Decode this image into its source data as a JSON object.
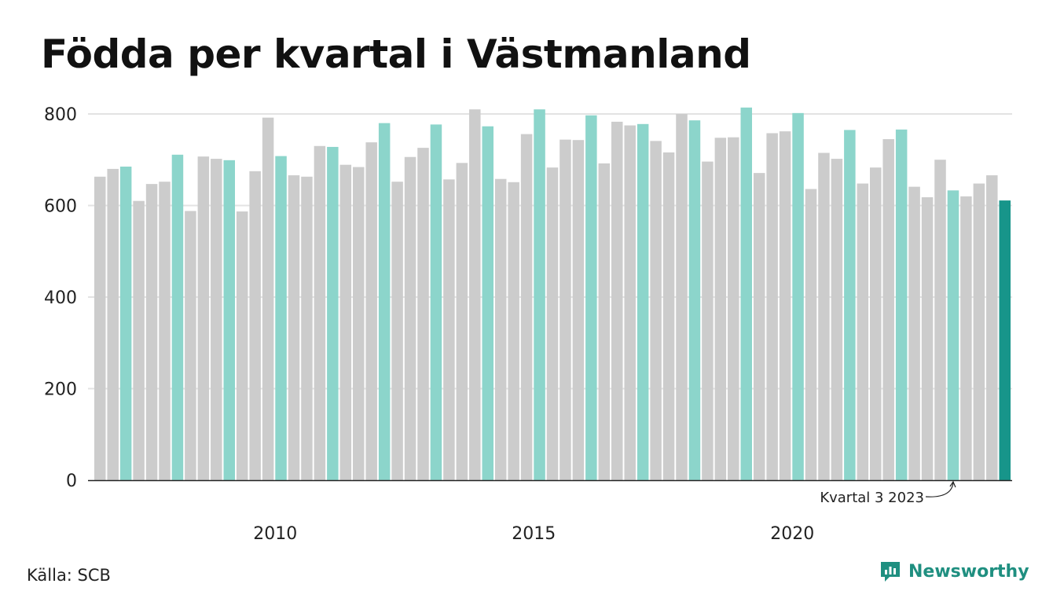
{
  "title": "Födda per kvartal i Västmanland",
  "source": "Källa: SCB",
  "brand": "Newsworthy",
  "colors": {
    "default_bar": "#cccccc",
    "same_quarter_bar": "#8cd5cb",
    "latest_bar": "#17958a",
    "axis": "#222222",
    "grid": "#e3e3e3",
    "brand": "#1f8f80"
  },
  "chart_data": {
    "type": "bar",
    "title": "Födda per kvartal i Västmanland",
    "ylim": [
      0,
      820
    ],
    "yticks": [
      0,
      200,
      400,
      600,
      800
    ],
    "grid": true,
    "xticks": [
      "2010",
      "2015",
      "2020"
    ],
    "annotation": "Kvartal 3 2023",
    "categories": [
      "2007 K1",
      "2007 K2",
      "2007 K3",
      "2007 K4",
      "2008 K1",
      "2008 K2",
      "2008 K3",
      "2008 K4",
      "2009 K1",
      "2009 K2",
      "2009 K3",
      "2009 K4",
      "2010 K1",
      "2010 K2",
      "2010 K3",
      "2010 K4",
      "2011 K1",
      "2011 K2",
      "2011 K3",
      "2011 K4",
      "2012 K1",
      "2012 K2",
      "2012 K3",
      "2012 K4",
      "2013 K1",
      "2013 K2",
      "2013 K3",
      "2013 K4",
      "2014 K1",
      "2014 K2",
      "2014 K3",
      "2014 K4",
      "2015 K1",
      "2015 K2",
      "2015 K3",
      "2015 K4",
      "2016 K1",
      "2016 K2",
      "2016 K3",
      "2016 K4",
      "2017 K1",
      "2017 K2",
      "2017 K3",
      "2017 K4",
      "2018 K1",
      "2018 K2",
      "2018 K3",
      "2018 K4",
      "2019 K1",
      "2019 K2",
      "2019 K3",
      "2019 K4",
      "2020 K1",
      "2020 K2",
      "2020 K3",
      "2020 K4",
      "2021 K1",
      "2021 K2",
      "2021 K3",
      "2021 K4",
      "2022 K1",
      "2022 K2",
      "2022 K3",
      "2022 K4",
      "2023 K1",
      "2023 K2",
      "2023 K3",
      "2023 K4",
      "2024 K1",
      "2024 K2",
      "2024 K3"
    ],
    "values": [
      663,
      680,
      685,
      610,
      647,
      652,
      711,
      588,
      707,
      702,
      699,
      587,
      675,
      792,
      708,
      666,
      663,
      730,
      728,
      689,
      684,
      738,
      780,
      652,
      706,
      726,
      777,
      657,
      693,
      810,
      773,
      658,
      651,
      756,
      810,
      683,
      744,
      743,
      797,
      692,
      783,
      775,
      778,
      741,
      716,
      800,
      786,
      696,
      748,
      749,
      814,
      671,
      758,
      762,
      802,
      636,
      715,
      702,
      765,
      648,
      683,
      745,
      766,
      641,
      618,
      700,
      633,
      620,
      648,
      666,
      611
    ]
  }
}
